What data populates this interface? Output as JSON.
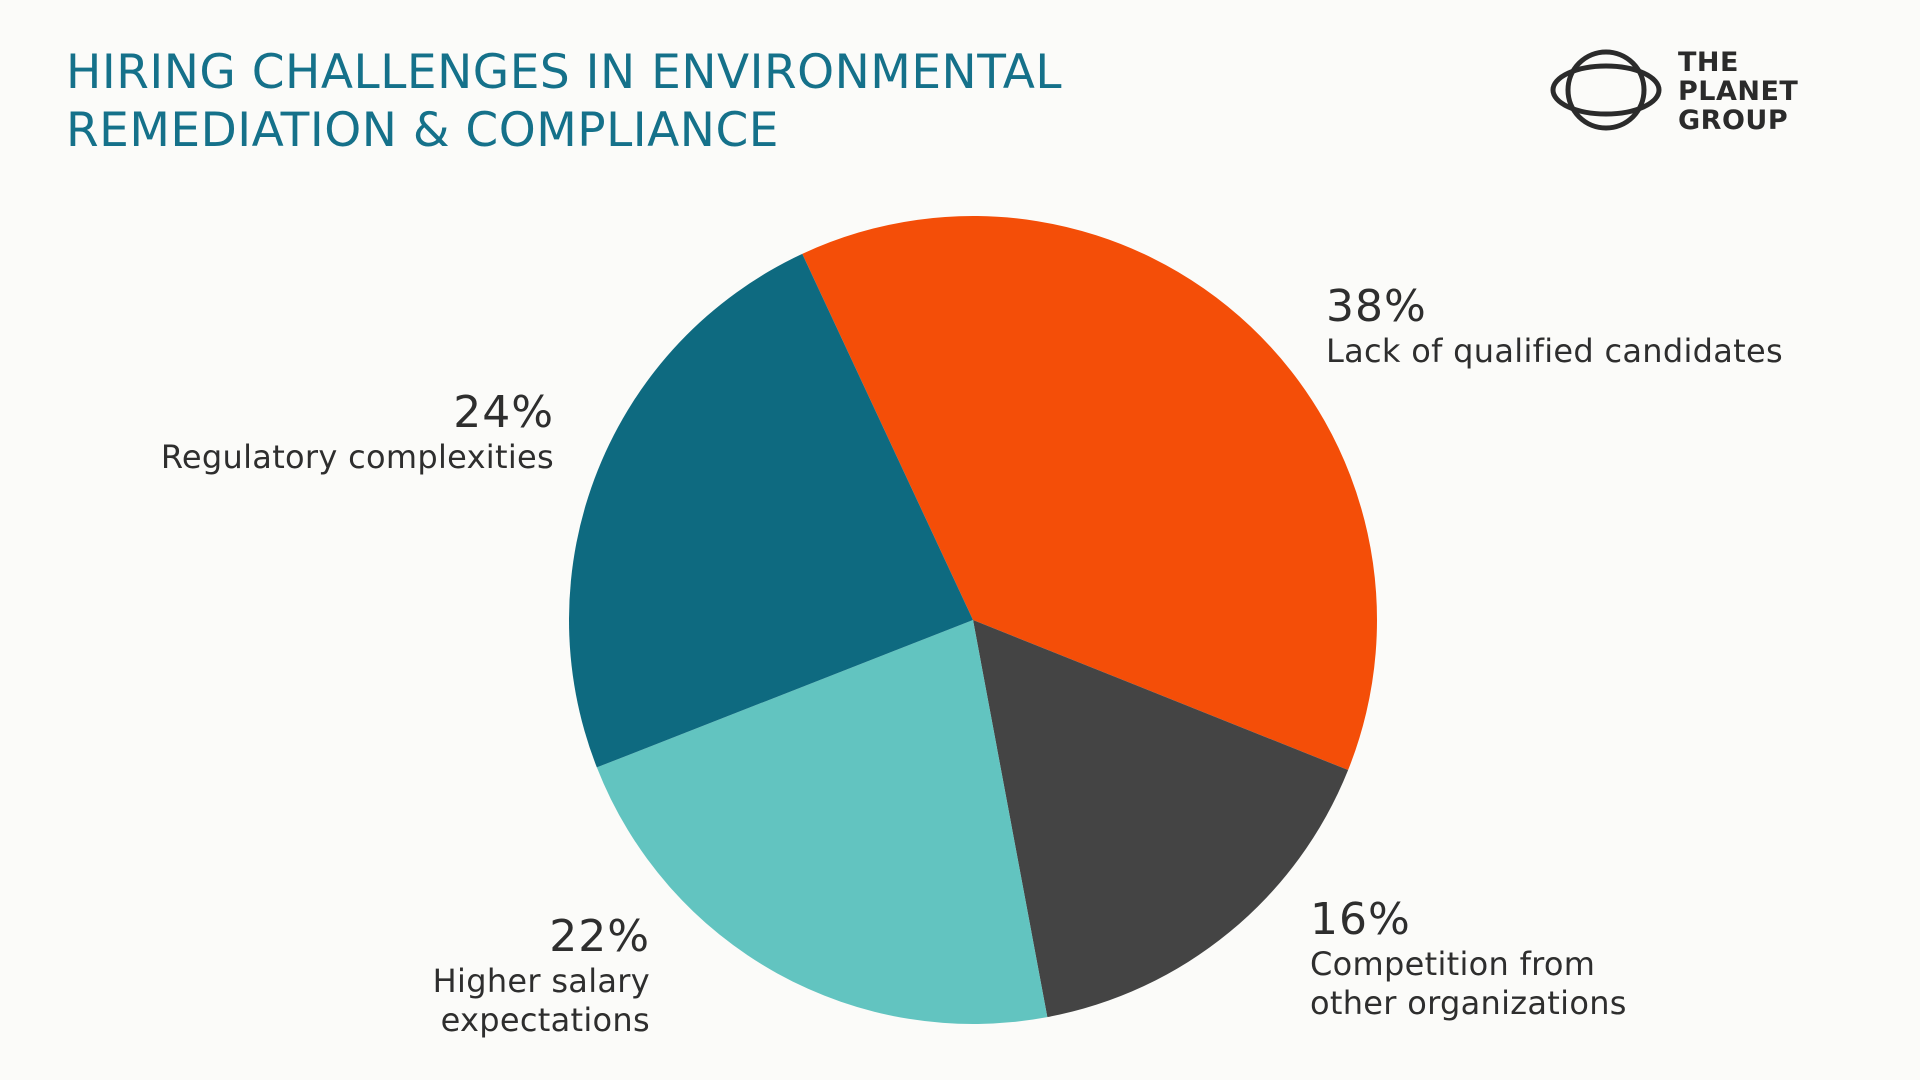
{
  "title": {
    "line1": "HIRING CHALLENGES IN ENVIRONMENTAL",
    "line2": "REMEDIATION & COMPLIANCE"
  },
  "logo": {
    "line1": "THE",
    "line2": "PLANET",
    "line3": "GROUP"
  },
  "colors": {
    "title": "#15718a",
    "background": "#fbfbf9",
    "text": "#2e2e2e"
  },
  "chart_data": {
    "type": "pie",
    "title": "HIRING CHALLENGES IN ENVIRONMENTAL REMEDIATION & COMPLIANCE",
    "legend": "none",
    "categories": [
      "Lack of qualified candidates",
      "Competition from other organizations",
      "Higher salary expectations",
      "Regulatory complexities"
    ],
    "values": [
      38,
      16,
      22,
      24
    ],
    "colors": [
      "#f44e08",
      "#444444",
      "#62c4c0",
      "#0e6a80"
    ],
    "slices": [
      {
        "percent_label": "38%",
        "label_lines": [
          "Lack of qualified candidates"
        ],
        "value": 38,
        "color": "#f44e08"
      },
      {
        "percent_label": "16%",
        "label_lines": [
          "Competition from",
          "other organizations"
        ],
        "value": 16,
        "color": "#444444"
      },
      {
        "percent_label": "22%",
        "label_lines": [
          "Higher salary",
          "expectations"
        ],
        "value": 22,
        "color": "#62c4c0"
      },
      {
        "percent_label": "24%",
        "label_lines": [
          "Regulatory complexities"
        ],
        "value": 24,
        "color": "#0e6a80"
      }
    ]
  }
}
